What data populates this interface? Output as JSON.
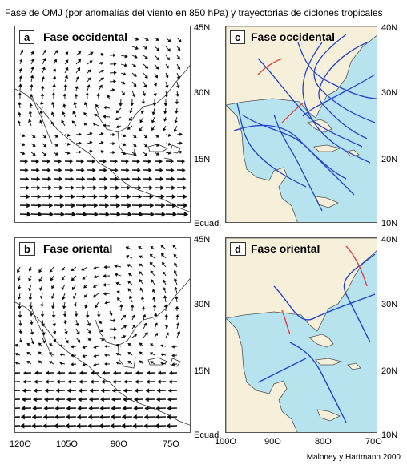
{
  "title": "Fase de OMJ (por anomalías del viento en 850 hPa) y trayectorias de ciclones tropicales",
  "credit": "Maloney y Hartmann 2000",
  "colors": {
    "ocean": "#b7e3ef",
    "land": "#f6efd9",
    "track_blue": "#2244cc",
    "track_red": "#e04040"
  },
  "panels": {
    "a": {
      "letter": "a",
      "label": "Fase occidental",
      "lat_ticks": [
        "45N",
        "30N",
        "15N",
        "Ecuad."
      ]
    },
    "b": {
      "letter": "b",
      "label": "Fase oriental",
      "lat_ticks": [
        "45N",
        "30N",
        "15N",
        "Ecuad."
      ]
    },
    "c": {
      "letter": "c",
      "label": "Fase occidental",
      "lat_ticks": [
        "40N",
        "30N",
        "20N",
        "10N"
      ]
    },
    "d": {
      "letter": "d",
      "label": "Fase oriental",
      "lat_ticks": [
        "40N",
        "30N",
        "20N",
        "10N"
      ]
    }
  },
  "lon_ticks_left": [
    "120O",
    "105O",
    "90O",
    "75O"
  ],
  "lon_ticks_right": [
    "100O",
    "90O",
    "80O",
    "70O"
  ]
}
